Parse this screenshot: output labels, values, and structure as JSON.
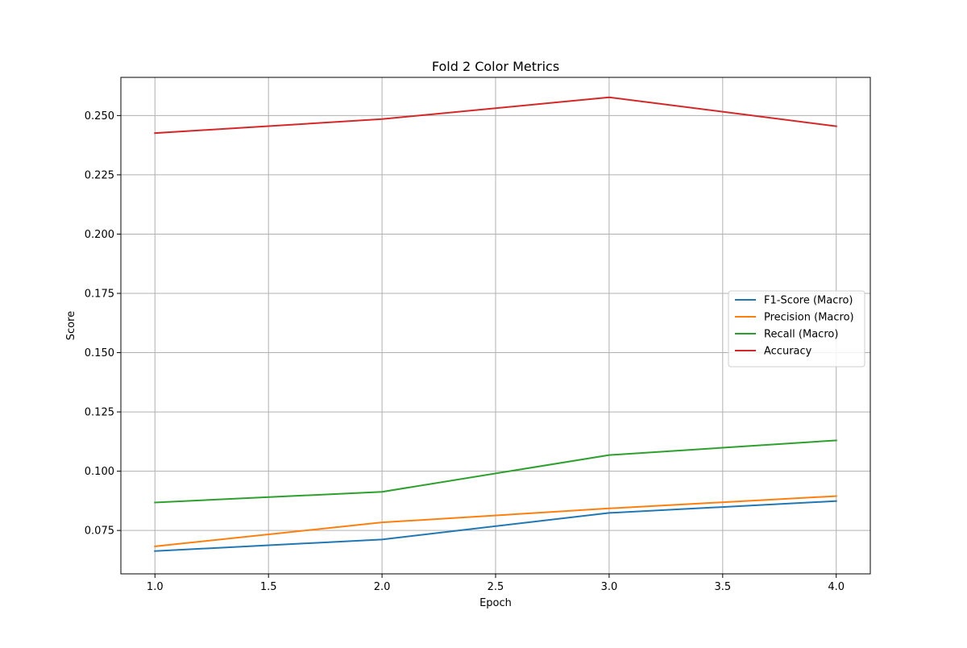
{
  "chart_data": {
    "type": "line",
    "title": "Fold 2 Color Metrics",
    "xlabel": "Epoch",
    "ylabel": "Score",
    "xlim": [
      0.85,
      4.15
    ],
    "ylim": [
      0.0567,
      0.2661
    ],
    "xticks": [
      1.0,
      1.5,
      2.0,
      2.5,
      3.0,
      3.5,
      4.0
    ],
    "xtick_labels": [
      "1.0",
      "1.5",
      "2.0",
      "2.5",
      "3.0",
      "3.5",
      "4.0"
    ],
    "yticks": [
      0.075,
      0.1,
      0.125,
      0.15,
      0.175,
      0.2,
      0.225,
      0.25
    ],
    "ytick_labels": [
      "0.075",
      "0.100",
      "0.125",
      "0.150",
      "0.175",
      "0.200",
      "0.225",
      "0.250"
    ],
    "grid": true,
    "legend_position": "center-right",
    "x": [
      1,
      2,
      3,
      4
    ],
    "series": [
      {
        "name": "F1-Score (Macro)",
        "color": "#1f77b4",
        "values": [
          0.0663,
          0.0712,
          0.0824,
          0.0874
        ]
      },
      {
        "name": "Precision (Macro)",
        "color": "#ff7f0e",
        "values": [
          0.0683,
          0.0784,
          0.0843,
          0.0895
        ]
      },
      {
        "name": "Recall (Macro)",
        "color": "#2ca02c",
        "values": [
          0.0868,
          0.0913,
          0.1068,
          0.113
        ]
      },
      {
        "name": "Accuracy",
        "color": "#d62728",
        "values": [
          0.2426,
          0.2485,
          0.2577,
          0.2455
        ]
      }
    ]
  }
}
